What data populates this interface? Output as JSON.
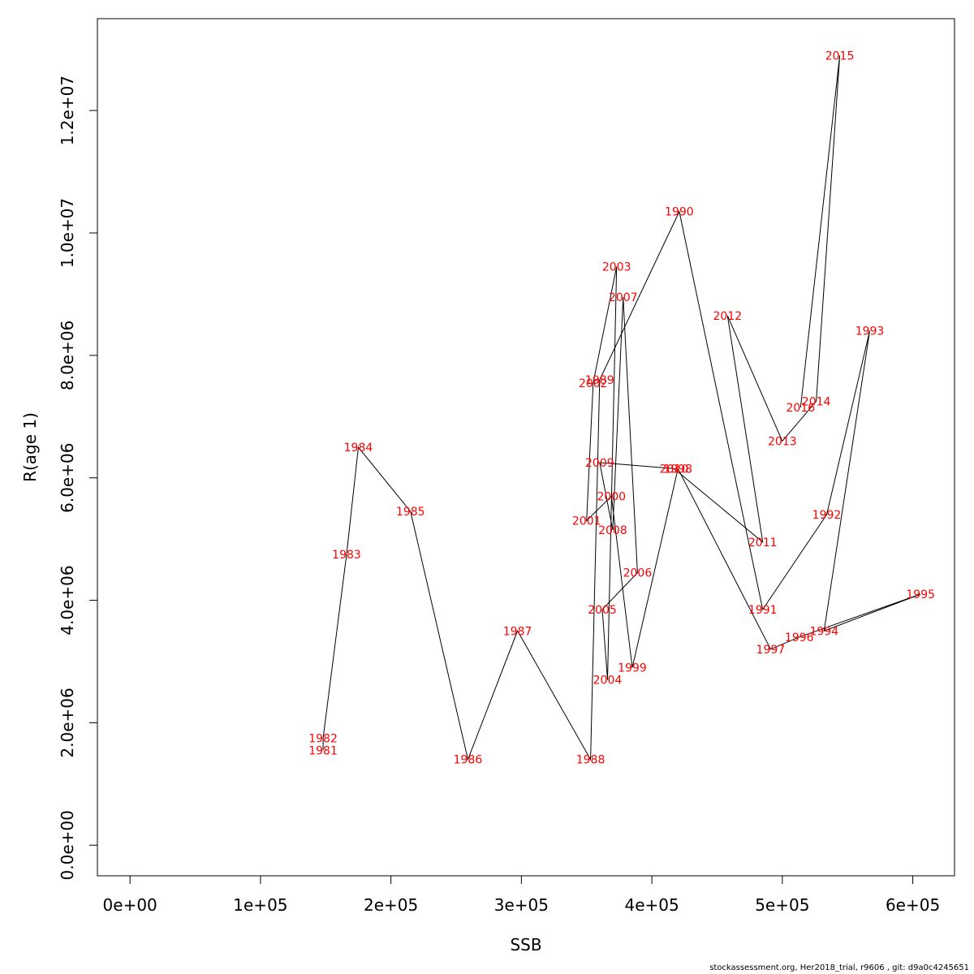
{
  "footer": "stockassessment.org, Her2018_trial, r9606 , git: d9a0c4245651",
  "chart_data": {
    "type": "line",
    "xlabel": "SSB",
    "ylabel": "R(age 1)",
    "xlim": [
      -25000,
      632000
    ],
    "ylim": [
      -500000,
      13500000
    ],
    "x_ticks": [
      0,
      100000,
      200000,
      300000,
      400000,
      500000,
      600000
    ],
    "x_tick_labels": [
      "0e+00",
      "1e+05",
      "2e+05",
      "3e+05",
      "4e+05",
      "5e+05",
      "6e+05"
    ],
    "y_ticks": [
      0,
      2000000,
      4000000,
      6000000,
      8000000,
      10000000,
      12000000
    ],
    "y_tick_labels": [
      "0.0e+00",
      "2.0e+06",
      "4.0e+06",
      "6.0e+06",
      "8.0e+06",
      "1.0e+07",
      "1.2e+07"
    ],
    "line_color": "#000000",
    "label_color": "#ff0000",
    "points": [
      {
        "year": "1981",
        "x": 148000,
        "y": 1550000
      },
      {
        "year": "1982",
        "x": 148000,
        "y": 1750000
      },
      {
        "year": "1983",
        "x": 166000,
        "y": 4750000
      },
      {
        "year": "1984",
        "x": 175000,
        "y": 6500000
      },
      {
        "year": "1985",
        "x": 215000,
        "y": 5450000
      },
      {
        "year": "1986",
        "x": 259000,
        "y": 1400000
      },
      {
        "year": "1987",
        "x": 297000,
        "y": 3500000
      },
      {
        "year": "1988",
        "x": 353000,
        "y": 1400000
      },
      {
        "year": "1989",
        "x": 360000,
        "y": 7600000
      },
      {
        "year": "1990",
        "x": 421000,
        "y": 10350000
      },
      {
        "year": "1991",
        "x": 485000,
        "y": 3850000
      },
      {
        "year": "1992",
        "x": 534000,
        "y": 5400000
      },
      {
        "year": "1993",
        "x": 567000,
        "y": 8400000
      },
      {
        "year": "1994",
        "x": 532000,
        "y": 3500000
      },
      {
        "year": "1995",
        "x": 606000,
        "y": 4100000
      },
      {
        "year": "1996",
        "x": 513000,
        "y": 3400000
      },
      {
        "year": "1997",
        "x": 491000,
        "y": 3200000
      },
      {
        "year": "1998",
        "x": 420000,
        "y": 6150000
      },
      {
        "year": "1999",
        "x": 385000,
        "y": 2900000
      },
      {
        "year": "2000",
        "x": 369000,
        "y": 5700000
      },
      {
        "year": "2001",
        "x": 350000,
        "y": 5300000
      },
      {
        "year": "2002",
        "x": 355000,
        "y": 7550000
      },
      {
        "year": "2003",
        "x": 373000,
        "y": 9450000
      },
      {
        "year": "2004",
        "x": 366000,
        "y": 2700000
      },
      {
        "year": "2005",
        "x": 362000,
        "y": 3850000
      },
      {
        "year": "2006",
        "x": 389000,
        "y": 4450000
      },
      {
        "year": "2007",
        "x": 378000,
        "y": 8950000
      },
      {
        "year": "2008",
        "x": 370000,
        "y": 5150000
      },
      {
        "year": "2009",
        "x": 360000,
        "y": 6250000
      },
      {
        "year": "2010",
        "x": 417000,
        "y": 6150000
      },
      {
        "year": "2011",
        "x": 485000,
        "y": 4950000
      },
      {
        "year": "2012",
        "x": 458000,
        "y": 8650000
      },
      {
        "year": "2013",
        "x": 500000,
        "y": 6600000
      },
      {
        "year": "2014",
        "x": 526000,
        "y": 7250000
      },
      {
        "year": "2015",
        "x": 544000,
        "y": 12900000
      },
      {
        "year": "2016",
        "x": 514000,
        "y": 7150000
      }
    ]
  }
}
